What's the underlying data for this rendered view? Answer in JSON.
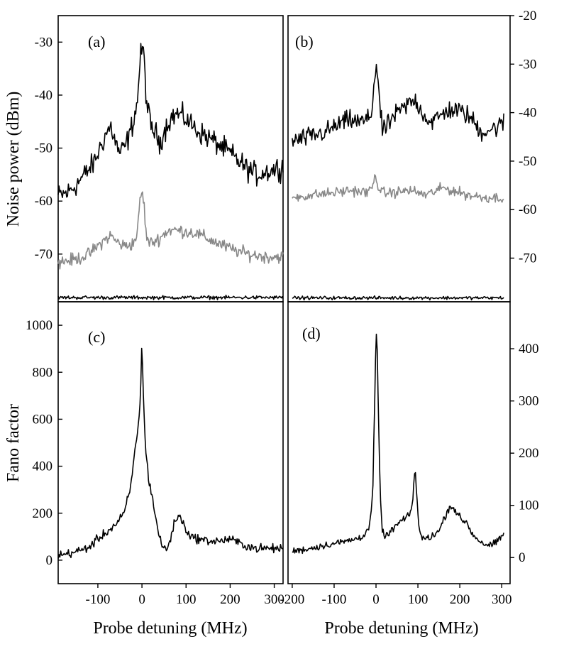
{
  "chart_data": [
    {
      "panel": "(a)",
      "type": "line",
      "xlim": [
        -190,
        320
      ],
      "ylim": [
        -79,
        -25
      ],
      "yticks": [
        -30,
        -40,
        -50,
        -60,
        -70
      ],
      "ylabel": "Noise power (dBm)",
      "xlabel": "",
      "grid": false,
      "series": [
        {
          "color": "#000000",
          "noise": 1.6,
          "points": [
            [
              -190,
              -59
            ],
            [
              -170,
              -58.5
            ],
            [
              -150,
              -57
            ],
            [
              -130,
              -55
            ],
            [
              -110,
              -53
            ],
            [
              -95,
              -50
            ],
            [
              -80,
              -47
            ],
            [
              -70,
              -46
            ],
            [
              -60,
              -49
            ],
            [
              -50,
              -51
            ],
            [
              -40,
              -50
            ],
            [
              -30,
              -48
            ],
            [
              -20,
              -45
            ],
            [
              -10,
              -41
            ],
            [
              -5,
              -34
            ],
            [
              0,
              -31
            ],
            [
              5,
              -33
            ],
            [
              10,
              -41
            ],
            [
              20,
              -46
            ],
            [
              30,
              -47
            ],
            [
              40,
              -49
            ],
            [
              50,
              -47
            ],
            [
              60,
              -45
            ],
            [
              70,
              -44
            ],
            [
              80,
              -43.5
            ],
            [
              100,
              -44.5
            ],
            [
              130,
              -47
            ],
            [
              160,
              -48.5
            ],
            [
              200,
              -51
            ],
            [
              240,
              -54
            ],
            [
              260,
              -55
            ],
            [
              280,
              -54.5
            ],
            [
              300,
              -54
            ],
            [
              320,
              -53.5
            ]
          ]
        },
        {
          "color": "#888888",
          "noise": 0.9,
          "points": [
            [
              -190,
              -71.5
            ],
            [
              -150,
              -71
            ],
            [
              -120,
              -70
            ],
            [
              -100,
              -68.5
            ],
            [
              -80,
              -67
            ],
            [
              -70,
              -66.5
            ],
            [
              -60,
              -67.5
            ],
            [
              -40,
              -68.5
            ],
            [
              -20,
              -68
            ],
            [
              -10,
              -66
            ],
            [
              -5,
              -60
            ],
            [
              0,
              -58
            ],
            [
              5,
              -61
            ],
            [
              10,
              -67
            ],
            [
              20,
              -68
            ],
            [
              40,
              -67
            ],
            [
              60,
              -65.5
            ],
            [
              80,
              -65.5
            ],
            [
              120,
              -66
            ],
            [
              160,
              -67.5
            ],
            [
              200,
              -69
            ],
            [
              240,
              -70
            ],
            [
              280,
              -70.5
            ],
            [
              320,
              -70.5
            ]
          ]
        },
        {
          "color": "#000000",
          "noise": 0.25,
          "points": [
            [
              -190,
              -78.2
            ],
            [
              320,
              -78.2
            ]
          ]
        }
      ]
    },
    {
      "panel": "(b)",
      "type": "line",
      "xlim": [
        -210,
        320
      ],
      "ylim": [
        -79,
        -20
      ],
      "yticks": [
        -20,
        -30,
        -40,
        -50,
        -60,
        -70
      ],
      "ylabel": "",
      "xlabel": "",
      "grid": false,
      "series": [
        {
          "color": "#000000",
          "noise": 1.5,
          "points": [
            [
              -200,
              -46
            ],
            [
              -160,
              -45
            ],
            [
              -120,
              -44
            ],
            [
              -80,
              -42
            ],
            [
              -60,
              -41.5
            ],
            [
              -40,
              -42
            ],
            [
              -20,
              -41.5
            ],
            [
              -10,
              -40
            ],
            [
              -5,
              -34
            ],
            [
              0,
              -30
            ],
            [
              5,
              -33
            ],
            [
              10,
              -40
            ],
            [
              15,
              -43.5
            ],
            [
              25,
              -43
            ],
            [
              40,
              -41
            ],
            [
              60,
              -39.5
            ],
            [
              80,
              -38
            ],
            [
              95,
              -37.5
            ],
            [
              110,
              -40
            ],
            [
              130,
              -42
            ],
            [
              150,
              -41
            ],
            [
              170,
              -39.5
            ],
            [
              190,
              -39.5
            ],
            [
              210,
              -40
            ],
            [
              230,
              -41.5
            ],
            [
              250,
              -44
            ],
            [
              270,
              -43.5
            ],
            [
              290,
              -43
            ],
            [
              305,
              -42
            ]
          ]
        },
        {
          "color": "#888888",
          "noise": 0.8,
          "points": [
            [
              -200,
              -57.5
            ],
            [
              -150,
              -57
            ],
            [
              -100,
              -56.5
            ],
            [
              -60,
              -56
            ],
            [
              -20,
              -56.5
            ],
            [
              -10,
              -55.5
            ],
            [
              -5,
              -54
            ],
            [
              0,
              -53
            ],
            [
              5,
              -55
            ],
            [
              10,
              -56.5
            ],
            [
              40,
              -56.5
            ],
            [
              80,
              -56
            ],
            [
              120,
              -57
            ],
            [
              160,
              -55.5
            ],
            [
              180,
              -56
            ],
            [
              220,
              -57
            ],
            [
              260,
              -57.5
            ],
            [
              305,
              -57.5
            ]
          ]
        },
        {
          "color": "#000000",
          "noise": 0.25,
          "points": [
            [
              -200,
              -78.2
            ],
            [
              305,
              -78.2
            ]
          ]
        }
      ]
    },
    {
      "panel": "(c)",
      "type": "line",
      "xlim": [
        -190,
        320
      ],
      "ylim": [
        -100,
        1100
      ],
      "xticks": [
        -100,
        0,
        100,
        200,
        300
      ],
      "yticks": [
        0,
        200,
        400,
        600,
        800,
        1000
      ],
      "ylabel": "Fano factor",
      "xlabel": "Probe detuning (MHz)",
      "grid": false,
      "series": [
        {
          "color": "#000000",
          "noise": 14,
          "points": [
            [
              -190,
              20
            ],
            [
              -150,
              35
            ],
            [
              -120,
              55
            ],
            [
              -100,
              90
            ],
            [
              -80,
              120
            ],
            [
              -60,
              150
            ],
            [
              -40,
              200
            ],
            [
              -25,
              320
            ],
            [
              -15,
              480
            ],
            [
              -8,
              580
            ],
            [
              -3,
              720
            ],
            [
              0,
              940
            ],
            [
              3,
              700
            ],
            [
              8,
              480
            ],
            [
              15,
              350
            ],
            [
              25,
              250
            ],
            [
              35,
              140
            ],
            [
              45,
              60
            ],
            [
              55,
              45
            ],
            [
              65,
              90
            ],
            [
              75,
              170
            ],
            [
              85,
              190
            ],
            [
              95,
              150
            ],
            [
              110,
              100
            ],
            [
              140,
              85
            ],
            [
              170,
              80
            ],
            [
              200,
              90
            ],
            [
              230,
              65
            ],
            [
              260,
              50
            ],
            [
              290,
              50
            ],
            [
              320,
              50
            ]
          ]
        }
      ]
    },
    {
      "panel": "(d)",
      "type": "line",
      "xlim": [
        -210,
        320
      ],
      "ylim": [
        -50,
        490
      ],
      "xticks": [
        -200,
        -100,
        0,
        100,
        200,
        300
      ],
      "yticks": [
        0,
        100,
        200,
        300,
        400
      ],
      "ylabel": "",
      "xlabel": "Probe detuning (MHz)",
      "grid": false,
      "series": [
        {
          "color": "#000000",
          "noise": 5,
          "points": [
            [
              -200,
              12
            ],
            [
              -160,
              17
            ],
            [
              -120,
              24
            ],
            [
              -80,
              30
            ],
            [
              -50,
              35
            ],
            [
              -30,
              42
            ],
            [
              -15,
              60
            ],
            [
              -8,
              120
            ],
            [
              -3,
              300
            ],
            [
              0,
              440
            ],
            [
              3,
              390
            ],
            [
              6,
              260
            ],
            [
              10,
              120
            ],
            [
              15,
              50
            ],
            [
              25,
              40
            ],
            [
              40,
              55
            ],
            [
              60,
              70
            ],
            [
              80,
              80
            ],
            [
              88,
              110
            ],
            [
              93,
              180
            ],
            [
              97,
              120
            ],
            [
              102,
              60
            ],
            [
              110,
              35
            ],
            [
              130,
              40
            ],
            [
              150,
              50
            ],
            [
              165,
              80
            ],
            [
              178,
              100
            ],
            [
              190,
              90
            ],
            [
              205,
              70
            ],
            [
              215,
              70
            ],
            [
              230,
              45
            ],
            [
              250,
              30
            ],
            [
              270,
              22
            ],
            [
              290,
              30
            ],
            [
              305,
              45
            ]
          ]
        }
      ]
    }
  ],
  "labels": {
    "panel_a": "(a)",
    "panel_b": "(b)",
    "panel_c": "(c)",
    "panel_d": "(d)",
    "ylabel_top": "Noise power (dBm)",
    "ylabel_bottom": "Fano factor",
    "xlabel_left": "Probe detuning (MHz)",
    "xlabel_right": "Probe detuning (MHz)"
  }
}
